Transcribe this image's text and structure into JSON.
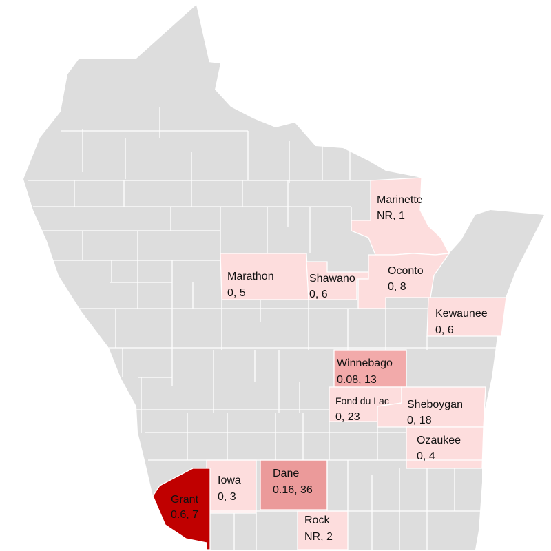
{
  "colors": {
    "background": "#ffffff",
    "county_default": "#dddddd",
    "county_border": "#ffffff",
    "low": "#fddddd",
    "mid": "#f2aaaa",
    "high": "#eb9a9a",
    "max": "#c00000"
  },
  "counties": [
    {
      "id": "marinette",
      "name": "Marinette",
      "value": "NR, 1",
      "level": "low"
    },
    {
      "id": "marathon",
      "name": "Marathon",
      "value": "0, 5",
      "level": "low"
    },
    {
      "id": "shawano",
      "name": "Shawano",
      "value": "0, 6",
      "level": "low"
    },
    {
      "id": "oconto",
      "name": "Oconto",
      "value": "0, 8",
      "level": "low"
    },
    {
      "id": "kewaunee",
      "name": "Kewaunee",
      "value": "0, 6",
      "level": "low"
    },
    {
      "id": "winnebago",
      "name": "Winnebago",
      "value": "0.08, 13",
      "level": "mid"
    },
    {
      "id": "fond-du-lac",
      "name": "Fond du Lac",
      "value": "0, 23",
      "level": "low"
    },
    {
      "id": "sheboygan",
      "name": "Sheboygan",
      "value": "0, 18",
      "level": "low"
    },
    {
      "id": "ozaukee",
      "name": "Ozaukee",
      "value": "0, 4",
      "level": "low"
    },
    {
      "id": "iowa",
      "name": "Iowa",
      "value": "0, 3",
      "level": "low"
    },
    {
      "id": "dane",
      "name": "Dane",
      "value": "0.16, 36",
      "level": "high"
    },
    {
      "id": "grant",
      "name": "Grant",
      "value": "0.6, 7",
      "level": "max"
    },
    {
      "id": "rock",
      "name": "Rock",
      "value": "NR, 2",
      "level": "low"
    }
  ]
}
